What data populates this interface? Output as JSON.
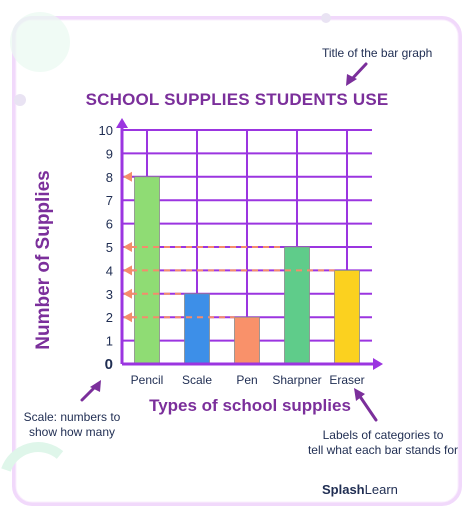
{
  "chart_data": {
    "type": "bar",
    "title": "SCHOOL SUPPLIES STUDENTS USE",
    "xlabel": "Types of school supplies",
    "ylabel": "Number of Supplies",
    "categories": [
      "Pencil",
      "Scale",
      "Pen",
      "Sharpner",
      "Eraser"
    ],
    "values": [
      8,
      3,
      2,
      5,
      4
    ],
    "bar_colors": [
      "#8fdc74",
      "#3d8fe8",
      "#f9916a",
      "#5fcc8a",
      "#fbd11f"
    ],
    "ylim": [
      0,
      10
    ],
    "yticks": [
      "0",
      "1",
      "2",
      "3",
      "4",
      "5",
      "6",
      "7",
      "8",
      "9",
      "10"
    ],
    "grid": true,
    "arrow_levels": [
      8,
      5,
      4,
      3,
      2
    ]
  },
  "annotations": {
    "title_note": "Title of the bar graph",
    "scale_note": [
      "Scale: numbers to",
      "show how many"
    ],
    "labels_note": [
      "Labels of categories to",
      "tell what each bar stands for"
    ]
  },
  "brand": {
    "bold": "Splash",
    "regular": "Learn"
  },
  "colors": {
    "accent_purple": "#7b2f9b",
    "grid_purple": "#9b35e0",
    "arrow_salmon": "#f48c6c",
    "dark_navy": "#1f2d52"
  }
}
